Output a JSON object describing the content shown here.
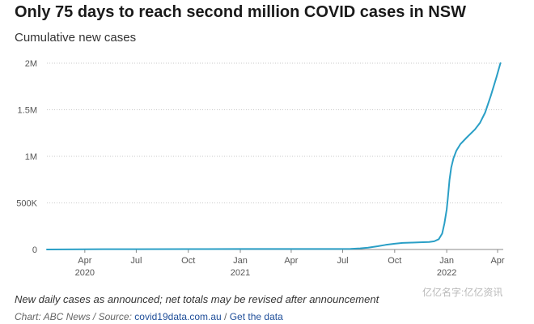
{
  "title": "Only 75 days to reach second million COVID cases in NSW",
  "subtitle": "Cumulative new cases",
  "footnote": "New daily cases as announced; net totals may be revised after announcement",
  "credit": {
    "prefix": "Chart: ABC News / Source: ",
    "source_link": "covid19data.com.au",
    "separator": " / ",
    "data_link": "Get the data"
  },
  "watermark": "亿亿名字:亿亿资讯",
  "colors": {
    "line": "#2a9fc6",
    "grid": "#c9c9c9",
    "axis_text": "#555555"
  },
  "chart_data": {
    "type": "line",
    "title": "Only 75 days to reach second million COVID cases in NSW",
    "subtitle": "Cumulative new cases",
    "xlim": [
      "2020-01-25",
      "2022-04-11"
    ],
    "ylim": [
      0,
      2000000
    ],
    "y_ticks": [
      {
        "value": 0,
        "label": "0"
      },
      {
        "value": 500000,
        "label": "500K"
      },
      {
        "value": 1000000,
        "label": "1M"
      },
      {
        "value": 1500000,
        "label": "1.5M"
      },
      {
        "value": 2000000,
        "label": "2M"
      }
    ],
    "x_ticks": [
      {
        "date": "2020-04-01",
        "label": "Apr",
        "sublabel": "2020"
      },
      {
        "date": "2020-07-01",
        "label": "Jul",
        "sublabel": ""
      },
      {
        "date": "2020-10-01",
        "label": "Oct",
        "sublabel": ""
      },
      {
        "date": "2021-01-01",
        "label": "Jan",
        "sublabel": "2021"
      },
      {
        "date": "2021-04-01",
        "label": "Apr",
        "sublabel": ""
      },
      {
        "date": "2021-07-01",
        "label": "Jul",
        "sublabel": ""
      },
      {
        "date": "2021-10-01",
        "label": "Oct",
        "sublabel": ""
      },
      {
        "date": "2022-01-01",
        "label": "Jan",
        "sublabel": "2022"
      },
      {
        "date": "2022-04-01",
        "label": "Apr",
        "sublabel": ""
      }
    ],
    "grid": "horizontal",
    "series": [
      {
        "points": [
          [
            "2020-01-25",
            0
          ],
          [
            "2020-04-01",
            2800
          ],
          [
            "2020-07-01",
            3400
          ],
          [
            "2020-10-01",
            4200
          ],
          [
            "2021-01-01",
            4900
          ],
          [
            "2021-04-01",
            5200
          ],
          [
            "2021-06-15",
            5500
          ],
          [
            "2021-07-15",
            7000
          ],
          [
            "2021-08-01",
            12000
          ],
          [
            "2021-08-15",
            20000
          ],
          [
            "2021-09-01",
            35000
          ],
          [
            "2021-09-15",
            50000
          ],
          [
            "2021-10-01",
            62000
          ],
          [
            "2021-10-15",
            70000
          ],
          [
            "2021-11-01",
            74000
          ],
          [
            "2021-11-15",
            77000
          ],
          [
            "2021-12-01",
            80000
          ],
          [
            "2021-12-10",
            88000
          ],
          [
            "2021-12-18",
            110000
          ],
          [
            "2021-12-24",
            170000
          ],
          [
            "2021-12-28",
            280000
          ],
          [
            "2022-01-01",
            430000
          ],
          [
            "2022-01-03",
            550000
          ],
          [
            "2022-01-06",
            750000
          ],
          [
            "2022-01-09",
            880000
          ],
          [
            "2022-01-13",
            980000
          ],
          [
            "2022-01-18",
            1060000
          ],
          [
            "2022-01-25",
            1130000
          ],
          [
            "2022-02-05",
            1200000
          ],
          [
            "2022-02-20",
            1290000
          ],
          [
            "2022-03-01",
            1360000
          ],
          [
            "2022-03-10",
            1470000
          ],
          [
            "2022-03-20",
            1650000
          ],
          [
            "2022-03-30",
            1850000
          ],
          [
            "2022-04-06",
            2000000
          ]
        ]
      }
    ]
  }
}
